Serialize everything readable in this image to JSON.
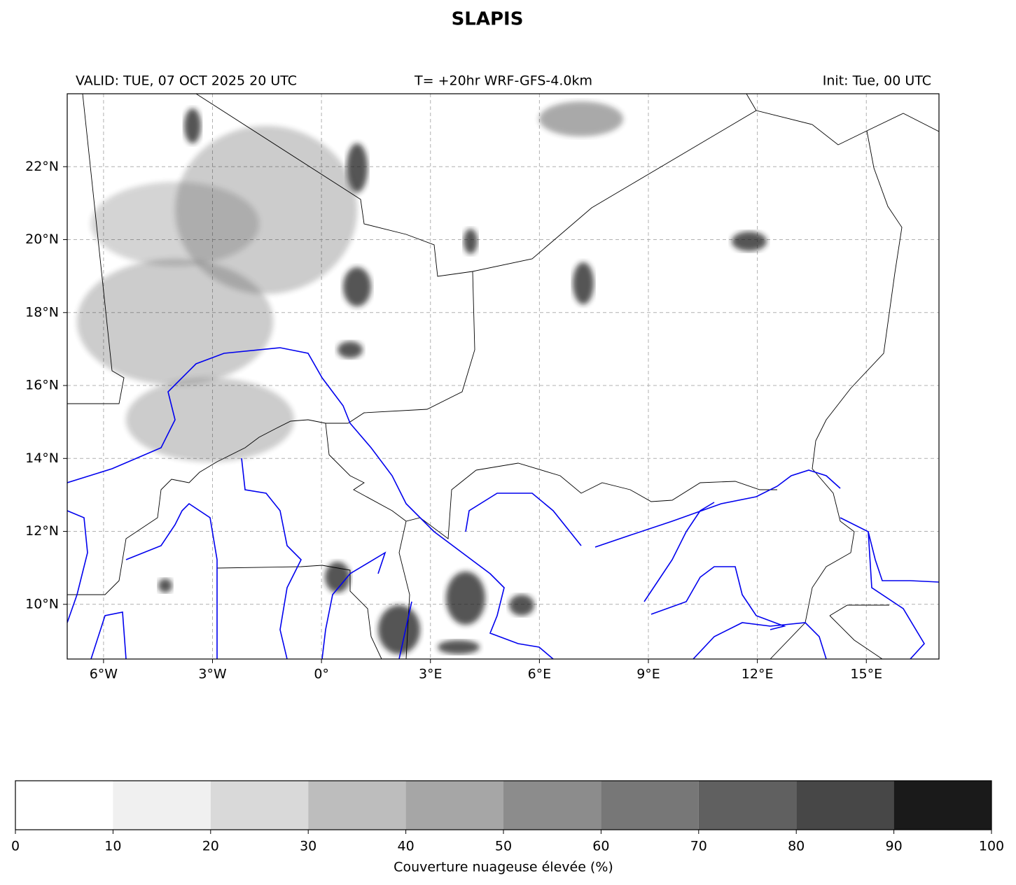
{
  "title": "SLAPIS",
  "subtitle_left": "VALID: TUE, 07 OCT 2025 20 UTC",
  "subtitle_center": "T= +20hr WRF-GFS-4.0km",
  "subtitle_right": "Init: Tue, 00 UTC",
  "map": {
    "xlim": [
      -7,
      17
    ],
    "ylim": [
      8.5,
      24
    ],
    "grid": true,
    "xticks": [
      {
        "value": -6,
        "label": "6°W"
      },
      {
        "value": -3,
        "label": "3°W"
      },
      {
        "value": 0,
        "label": "0°"
      },
      {
        "value": 3,
        "label": "3°E"
      },
      {
        "value": 6,
        "label": "6°E"
      },
      {
        "value": 9,
        "label": "9°E"
      },
      {
        "value": 12,
        "label": "12°E"
      },
      {
        "value": 15,
        "label": "15°E"
      }
    ],
    "yticks": [
      {
        "value": 10,
        "label": "10°N"
      },
      {
        "value": 12,
        "label": "12°N"
      },
      {
        "value": 14,
        "label": "14°N"
      },
      {
        "value": 16,
        "label": "16°N"
      },
      {
        "value": 18,
        "label": "18°N"
      },
      {
        "value": 20,
        "label": "20°N"
      },
      {
        "value": 22,
        "label": "22°N"
      }
    ]
  },
  "colorbar": {
    "label": "Couverture nuageuse élevée (%)",
    "lim": [
      0,
      100
    ],
    "ticks": [
      0,
      10,
      20,
      30,
      40,
      50,
      60,
      70,
      80,
      90,
      100
    ],
    "colors": [
      "#ffffff",
      "#f0f0f0",
      "#d9d9d9",
      "#bdbdbd",
      "#a6a6a6",
      "#8c8c8c",
      "#777777",
      "#606060",
      "#474747",
      "#1a1a1a"
    ]
  }
}
